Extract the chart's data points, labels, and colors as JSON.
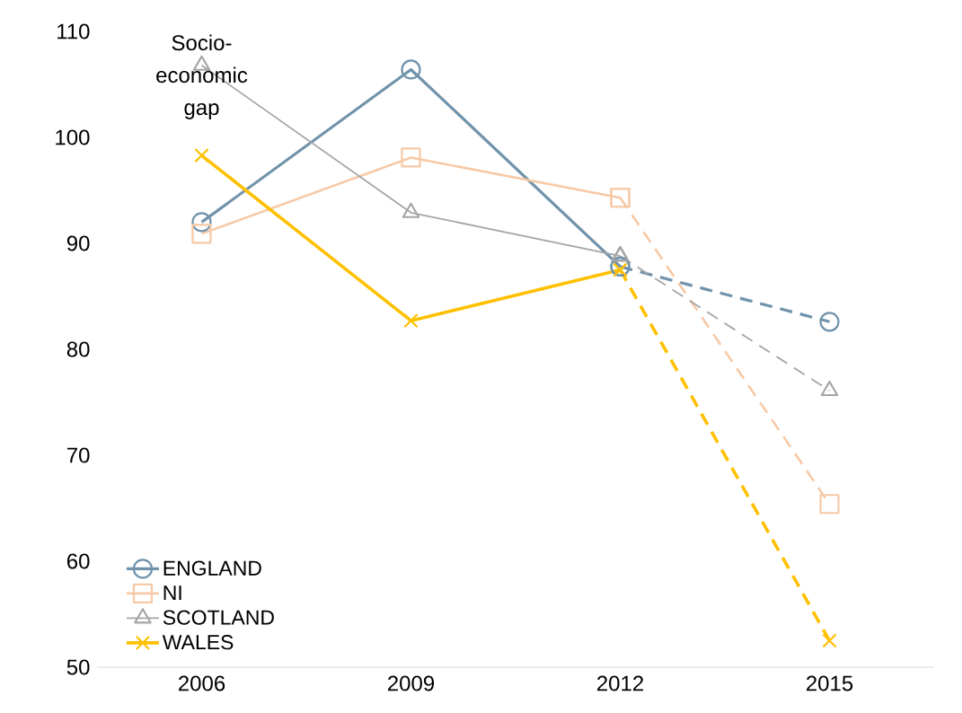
{
  "chart_data": {
    "type": "line",
    "ylabel": "Socio-economic gap",
    "categories": [
      "2006",
      "2009",
      "2012",
      "2015"
    ],
    "ylim": [
      50,
      110
    ],
    "yticks": [
      50,
      60,
      70,
      80,
      90,
      100,
      110
    ],
    "legend": "bottom left",
    "series": [
      {
        "name": "ENGLAND",
        "color": "#7093ab",
        "marker": "circle",
        "line_style": "solid",
        "values": [
          92,
          106.4,
          87.8,
          null
        ]
      },
      {
        "name": "NI",
        "color": "#f7c9a6",
        "marker": "square",
        "line_style": "solid",
        "values": [
          90.9,
          98.1,
          94.3,
          null
        ]
      },
      {
        "name": "SCOTLAND",
        "color": "#a5a5a5",
        "marker": "triangle",
        "line_style": "solid",
        "values": [
          106.8,
          92.9,
          88.8,
          null
        ]
      },
      {
        "name": "WALES",
        "color": "#ffc000",
        "marker": "cross",
        "line_style": "solid",
        "values": [
          98.3,
          82.7,
          87.5,
          null
        ]
      },
      {
        "color": "#7093ab",
        "marker": "circle",
        "line_style": "dashed",
        "values": [
          null,
          null,
          87.8,
          82.6
        ]
      },
      {
        "color": "#f7c9a6",
        "marker": "square",
        "line_style": "dashed",
        "values": [
          null,
          null,
          94.3,
          65.4
        ]
      },
      {
        "color": "#a5a5a5",
        "marker": "triangle",
        "line_style": "dashed",
        "values": [
          null,
          null,
          88.8,
          76.1
        ]
      },
      {
        "color": "#ffc000",
        "marker": "cross",
        "line_style": "dashed",
        "values": [
          null,
          null,
          87.5,
          52.5
        ]
      }
    ]
  }
}
